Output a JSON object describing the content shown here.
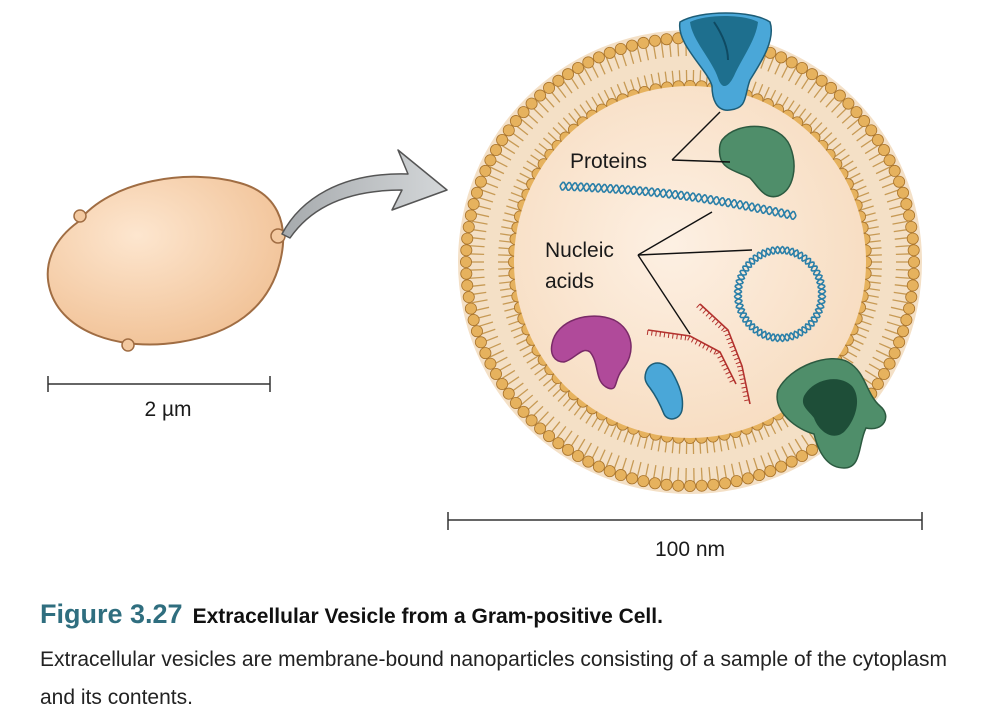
{
  "labels": {
    "cell_scale": "2 µm",
    "vesicle_scale": "100 nm",
    "proteins": "Proteins",
    "nucleic_line1": "Nucleic",
    "nucleic_line2": "acids"
  },
  "caption": {
    "figure_number": "Figure 3.27",
    "title": "Extracellular Vesicle from a Gram-positive Cell.",
    "text": "Extracellular vesicles are membrane-bound nanoparticles consisting of a sample of the cytoplasm and its contents."
  },
  "colors": {
    "cell_fill": "#f6cfa8",
    "cell_stroke": "#a06d43",
    "lipid_head": "#e6b25e",
    "lipid_tail": "#c79a55",
    "vesicle_interior": "#fbe7d4",
    "protein_blue": "#4aa7d8",
    "protein_blue_dark": "#1e6f8e",
    "protein_green": "#4f8e6a",
    "protein_green_dark": "#1e4e38",
    "protein_magenta": "#b04a9a",
    "dna": "#2a7fa8",
    "rna": "#b3322e",
    "arrow": "#b8bcbe",
    "caption_accent": "#2f6e7f"
  }
}
